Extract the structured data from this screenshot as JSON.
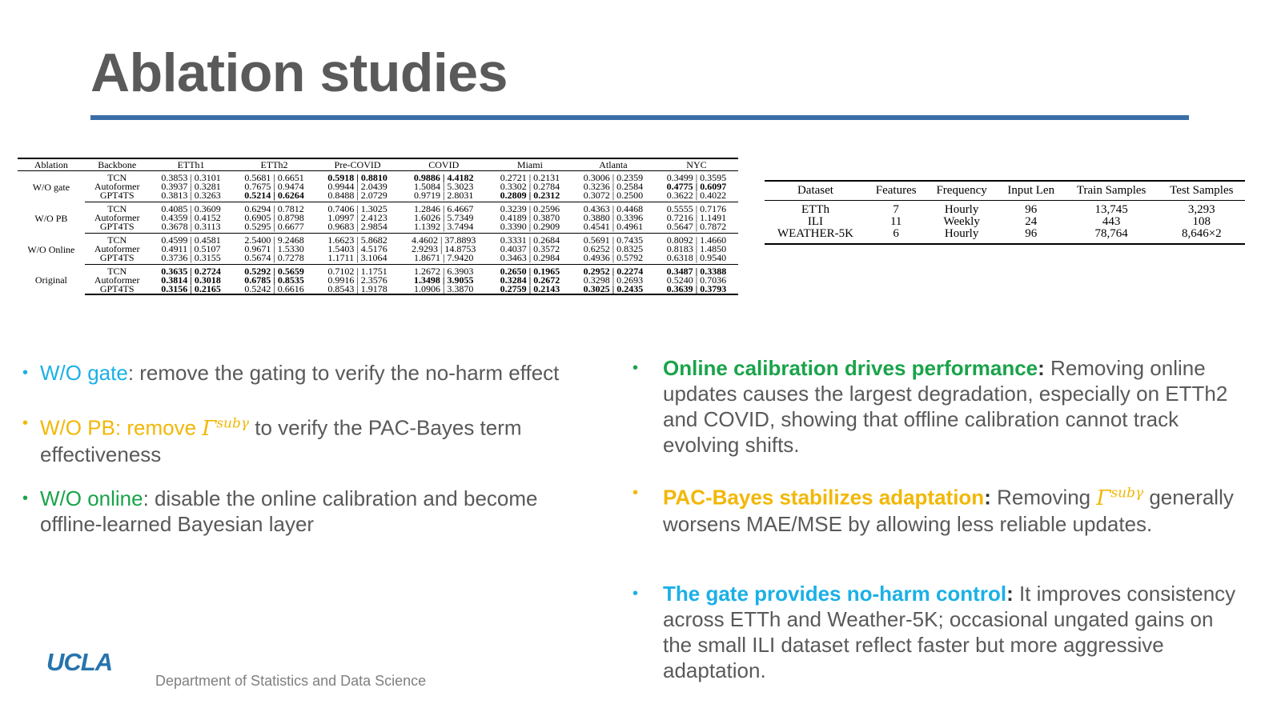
{
  "slide": {
    "title": "Ablation studies"
  },
  "results_table": {
    "headers": [
      "Ablation",
      "Backbone",
      "ETTh1",
      "ETTh2",
      "Pre-COVID",
      "COVID",
      "Miami",
      "Atlanta",
      "NYC"
    ],
    "groups": [
      {
        "ablation": "W/O gate",
        "rows": [
          {
            "backbone": "TCN",
            "cells": [
              "0.3853 | 0.3101",
              "0.5681 | 0.6651",
              "0.5918 | 0.8810",
              "0.9886 | 4.4182",
              "0.2721 | 0.2131",
              "0.3006 | 0.2359",
              "0.3499 | 0.3595"
            ]
          },
          {
            "backbone": "Autoformer",
            "cells": [
              "0.3937 | 0.3281",
              "0.7675 | 0.9474",
              "0.9944 | 2.0439",
              "1.5084 | 5.3023",
              "0.3302 | 0.2784",
              "0.3236 | 0.2584",
              "0.4775 | 0.6097"
            ]
          },
          {
            "backbone": "GPT4TS",
            "cells": [
              "0.3813 | 0.3263",
              "0.5214 | 0.6264",
              "0.8488 | 2.0729",
              "0.9719 | 2.8031",
              "0.2809 | 0.2312",
              "0.3072 | 0.2500",
              "0.3622 | 0.4022"
            ]
          }
        ]
      },
      {
        "ablation": "W/O PB",
        "rows": [
          {
            "backbone": "TCN",
            "cells": [
              "0.4085 | 0.3609",
              "0.6294 | 0.7812",
              "0.7406 | 1.3025",
              "1.2846 | 6.4667",
              "0.3239 | 0.2596",
              "0.4363 | 0.4468",
              "0.5555 | 0.7176"
            ]
          },
          {
            "backbone": "Autoformer",
            "cells": [
              "0.4359 | 0.4152",
              "0.6905 | 0.8798",
              "1.0997 | 2.4123",
              "1.6026 | 5.7349",
              "0.4189 | 0.3870",
              "0.3880 | 0.3396",
              "0.7216 | 1.1491"
            ]
          },
          {
            "backbone": "GPT4TS",
            "cells": [
              "0.3678 | 0.3113",
              "0.5295 | 0.6677",
              "0.9683 | 2.9854",
              "1.1392 | 3.7494",
              "0.3390 | 0.2909",
              "0.4541 | 0.4961",
              "0.5647 | 0.7872"
            ]
          }
        ]
      },
      {
        "ablation": "W/O Online",
        "rows": [
          {
            "backbone": "TCN",
            "cells": [
              "0.4599 | 0.4581",
              "2.5400 | 9.2468",
              "1.6623 | 5.8682",
              "4.4602 | 37.8893",
              "0.3331 | 0.2684",
              "0.5691 | 0.7435",
              "0.8092 | 1.4660"
            ]
          },
          {
            "backbone": "Autoformer",
            "cells": [
              "0.4911 | 0.5107",
              "0.9671 | 1.5330",
              "1.5403 | 4.5176",
              "2.9293 | 14.8753",
              "0.4037 | 0.3572",
              "0.6252 | 0.8325",
              "0.8183 | 1.4850"
            ]
          },
          {
            "backbone": "GPT4TS",
            "cells": [
              "0.3736 | 0.3155",
              "0.5674 | 0.7278",
              "1.1711 | 3.1064",
              "1.8671 | 7.9420",
              "0.3463 | 0.2984",
              "0.4936 | 0.5792",
              "0.6318 | 0.9540"
            ]
          }
        ]
      },
      {
        "ablation": "Original",
        "rows": [
          {
            "backbone": "TCN",
            "cells": [
              "0.3635 | 0.2724",
              "0.5292 | 0.5659",
              "0.7102 | 1.1751",
              "1.2672 | 6.3903",
              "0.2650 | 0.1965",
              "0.2952 | 0.2274",
              "0.3487 | 0.3388"
            ]
          },
          {
            "backbone": "Autoformer",
            "cells": [
              "0.3814 | 0.3018",
              "0.6785 | 0.8535",
              "0.9916 | 2.3576",
              "1.3498 | 3.9055",
              "0.3284 | 0.2672",
              "0.3298 | 0.2693",
              "0.5240 | 0.7036"
            ]
          },
          {
            "backbone": "GPT4TS",
            "cells": [
              "0.3156 | 0.2165",
              "0.5242 | 0.6616",
              "0.8543 | 1.9178",
              "1.0906 | 3.3870",
              "0.2759 | 0.2143",
              "0.3025 | 0.2435",
              "0.3639 | 0.3793"
            ]
          }
        ]
      }
    ]
  },
  "dataset_table": {
    "headers": [
      "Dataset",
      "Features",
      "Frequency",
      "Input Len",
      "Train Samples",
      "Test Samples"
    ],
    "rows": [
      [
        "ETTh",
        "7",
        "Hourly",
        "96",
        "13,745",
        "3,293"
      ],
      [
        "ILI",
        "11",
        "Weekly",
        "24",
        "443",
        "108"
      ],
      [
        "WEATHER-5K",
        "6",
        "Hourly",
        "96",
        "78,764",
        "8,646×2"
      ]
    ]
  },
  "left_bullets": [
    {
      "key": "W/O gate",
      "rest": ": remove the gating to verify the no-harm effect"
    },
    {
      "key": "W/O PB: remove ",
      "gamma": "Γ",
      "sup": "subγ",
      "rest": " to verify the PAC-Bayes term effectiveness"
    },
    {
      "key": "W/O online",
      "rest": ": disable the online calibration and become offline-learned Bayesian layer"
    }
  ],
  "right_bullets": [
    {
      "head": "Online calibration drives performance",
      "colon": ":",
      "body": " Removing online updates causes the largest degradation, especially on ETTh2 and COVID, showing that offline calibration cannot track evolving shifts."
    },
    {
      "head": "PAC-Bayes stabilizes adaptation",
      "colon": ":",
      "body_pre": " Removing ",
      "gamma": "Γ",
      "sup": "subγ",
      "body": " generally worsens MAE/MSE by allowing less reliable updates."
    },
    {
      "head": "The gate provides no-harm control",
      "colon": ":",
      "body": " It improves consistency across ETTh and Weather-5K; occasional ungated gains on the small ILI dataset reflect faster but more aggressive adaptation."
    }
  ],
  "footer": {
    "logo": "UCLA",
    "department": "Department of Statistics and Data Science"
  },
  "colors": {
    "title": "#5a5a5a",
    "rule": "#3a6ea8",
    "blue": "#1bb0e6",
    "yellow": "#f2b705",
    "green": "#1aa34a",
    "logo": "#2774ae"
  }
}
